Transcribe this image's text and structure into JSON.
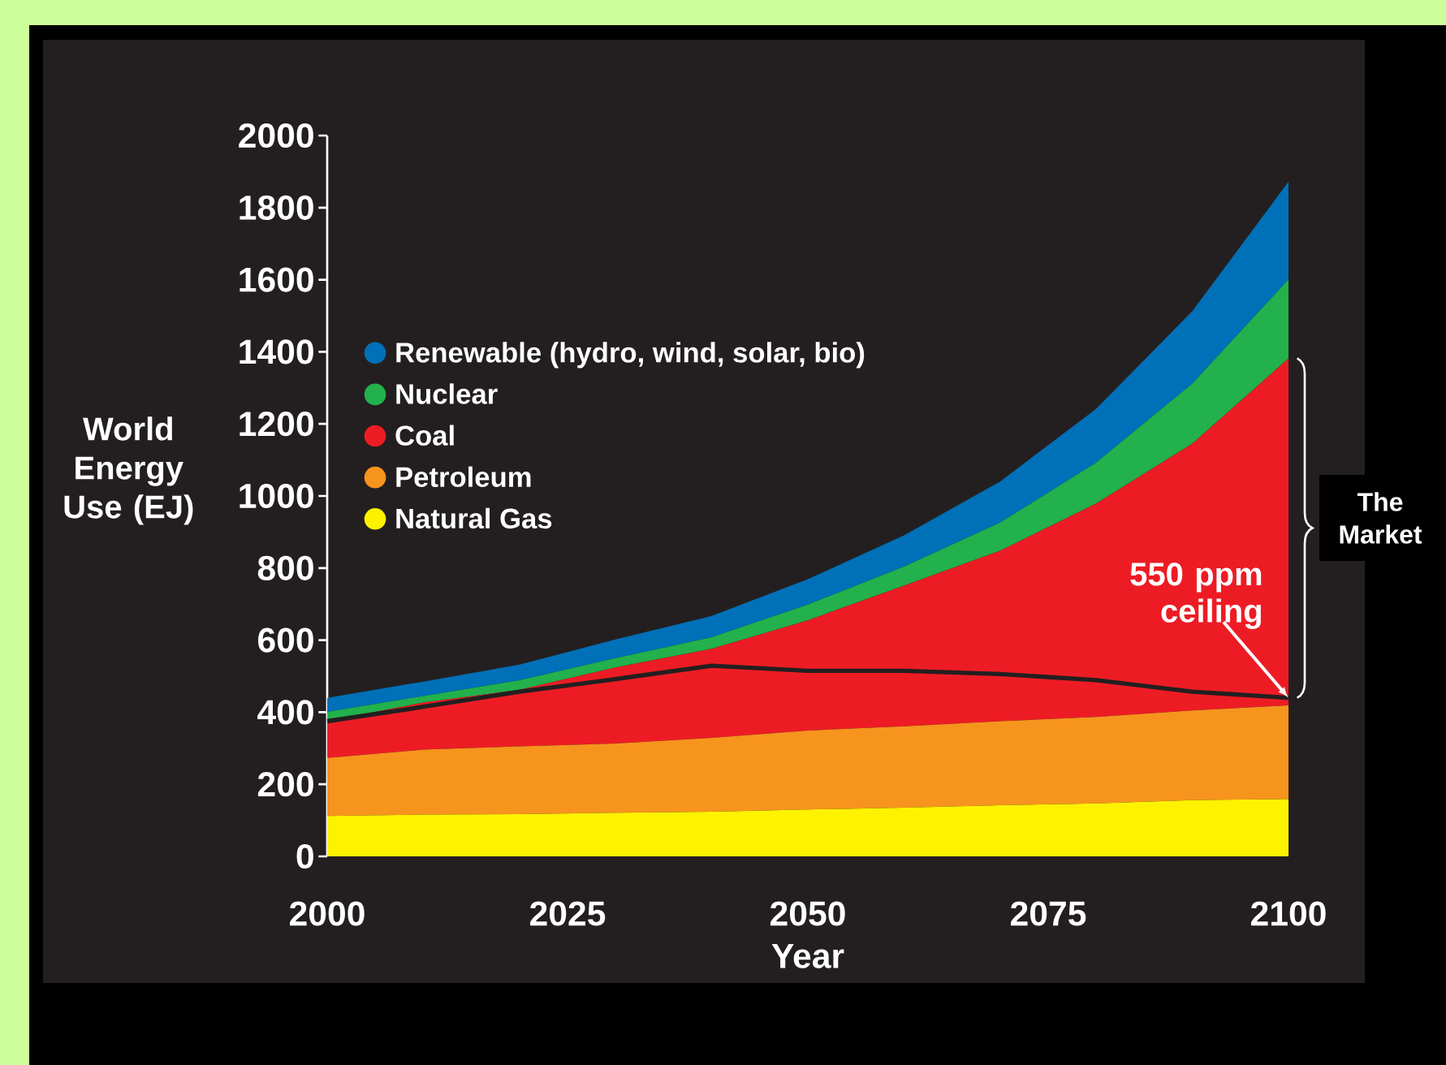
{
  "chart_data": {
    "type": "area",
    "stacked": true,
    "xlabel": "Year",
    "ylabel": "World Energy Use (EJ)",
    "x": [
      2000,
      2010,
      2020,
      2030,
      2040,
      2050,
      2060,
      2070,
      2080,
      2090,
      2100
    ],
    "xlim": [
      2000,
      2100
    ],
    "xticks": [
      2000,
      2025,
      2050,
      2075,
      2100
    ],
    "ylim": [
      0,
      2000
    ],
    "yticks": [
      0,
      200,
      400,
      600,
      800,
      1000,
      1200,
      1400,
      1600,
      1800,
      2000
    ],
    "grid": false,
    "legend": "top left",
    "series": [
      {
        "name": "Natural Gas",
        "color": "#fff200",
        "values": [
          112,
          116,
          117,
          121,
          124,
          130,
          135,
          142,
          147,
          156,
          159
        ]
      },
      {
        "name": "Petroleum",
        "color": "#f7941d",
        "values": [
          161,
          180,
          188,
          192,
          205,
          219,
          226,
          233,
          240,
          249,
          260
        ]
      },
      {
        "name": "Coal",
        "color": "#ed1c24",
        "values": [
          102,
          131,
          157,
          211,
          247,
          306,
          390,
          473,
          592,
          740,
          963
        ]
      },
      {
        "name": "Nuclear",
        "color": "#22b14c",
        "values": [
          26,
          18,
          27,
          26,
          32,
          44,
          53,
          78,
          114,
          167,
          219
        ]
      },
      {
        "name": "Renewable (hydro, wind, solar, bio)",
        "color": "#0070b8",
        "values": [
          39,
          40,
          43,
          52,
          59,
          70,
          87,
          114,
          149,
          201,
          271
        ]
      },
      {
        "name": "550 ppm ceiling",
        "type": "line",
        "color": "#231f20",
        "values": [
          375,
          415,
          457,
          492,
          529,
          515,
          515,
          506,
          489,
          457,
          440
        ]
      }
    ],
    "annotations": [
      "The Market"
    ]
  }
}
